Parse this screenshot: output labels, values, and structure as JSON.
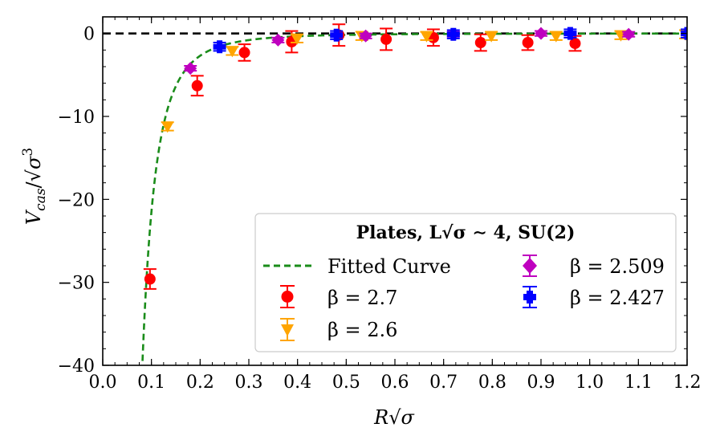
{
  "chart_data": {
    "type": "scatter",
    "xlabel": "R√σ",
    "ylabel": "V_cas/√σ³",
    "xlim": [
      0.0,
      1.2
    ],
    "ylim": [
      -40,
      2
    ],
    "x_ticks": [
      "0.0",
      "0.1",
      "0.2",
      "0.3",
      "0.4",
      "0.5",
      "0.6",
      "0.7",
      "0.8",
      "0.9",
      "1.0",
      "1.1",
      "1.2"
    ],
    "y_ticks": [
      "0",
      "−10",
      "−20",
      "−30",
      "−40"
    ],
    "legend": {
      "title": "Plates, L√σ ∼ 4, SU(2)",
      "placement": "lower-right",
      "entries": {
        "fit": "Fitted Curve",
        "b27": "β = 2.7",
        "b26": "β = 2.6",
        "b2509": "β = 2.509",
        "b2427": "β = 2.427"
      }
    },
    "fit": {
      "label": "Fitted Curve",
      "model": "a / x^3",
      "a": -0.0215,
      "color": "#1a8c1a"
    },
    "reference_line": {
      "y": 0,
      "color": "#000000",
      "style": "dashed"
    },
    "series": [
      {
        "name": "β = 2.7",
        "marker": "circle",
        "color": "#ff0000",
        "x": [
          0.097,
          0.194,
          0.291,
          0.388,
          0.485,
          0.582,
          0.679,
          0.776,
          0.873,
          0.97
        ],
        "y": [
          -29.6,
          -6.3,
          -2.3,
          -1.0,
          -0.2,
          -0.7,
          -0.5,
          -1.1,
          -1.1,
          -1.2
        ],
        "err": [
          1.2,
          1.2,
          1.0,
          1.3,
          1.3,
          1.3,
          1.0,
          1.0,
          0.9,
          0.9
        ]
      },
      {
        "name": "β = 2.6",
        "marker": "triangle-down",
        "color": "#ffa500",
        "x": [
          0.133,
          0.266,
          0.399,
          0.532,
          0.665,
          0.798,
          0.931,
          1.064,
          1.197
        ],
        "y": [
          -11.2,
          -2.1,
          -0.6,
          -0.3,
          -0.3,
          -0.3,
          -0.3,
          -0.2,
          -0.1
        ],
        "err": [
          0.5,
          0.5,
          0.5,
          0.5,
          0.5,
          0.5,
          0.5,
          0.5,
          0.5
        ]
      },
      {
        "name": "β = 2.509",
        "marker": "diamond",
        "color": "#bf00bf",
        "x": [
          0.18,
          0.36,
          0.54,
          0.72,
          0.9,
          1.08
        ],
        "y": [
          -4.2,
          -0.8,
          -0.3,
          -0.1,
          0.0,
          -0.1
        ],
        "err": [
          0.3,
          0.3,
          0.3,
          0.3,
          0.3,
          0.3
        ]
      },
      {
        "name": "β = 2.427",
        "marker": "plus",
        "color": "#0000ff",
        "x": [
          0.24,
          0.48,
          0.72,
          0.96,
          1.2
        ],
        "y": [
          -1.6,
          -0.2,
          -0.1,
          0.0,
          0.0
        ],
        "err": [
          0.5,
          0.5,
          0.5,
          0.5,
          0.5
        ]
      }
    ]
  }
}
